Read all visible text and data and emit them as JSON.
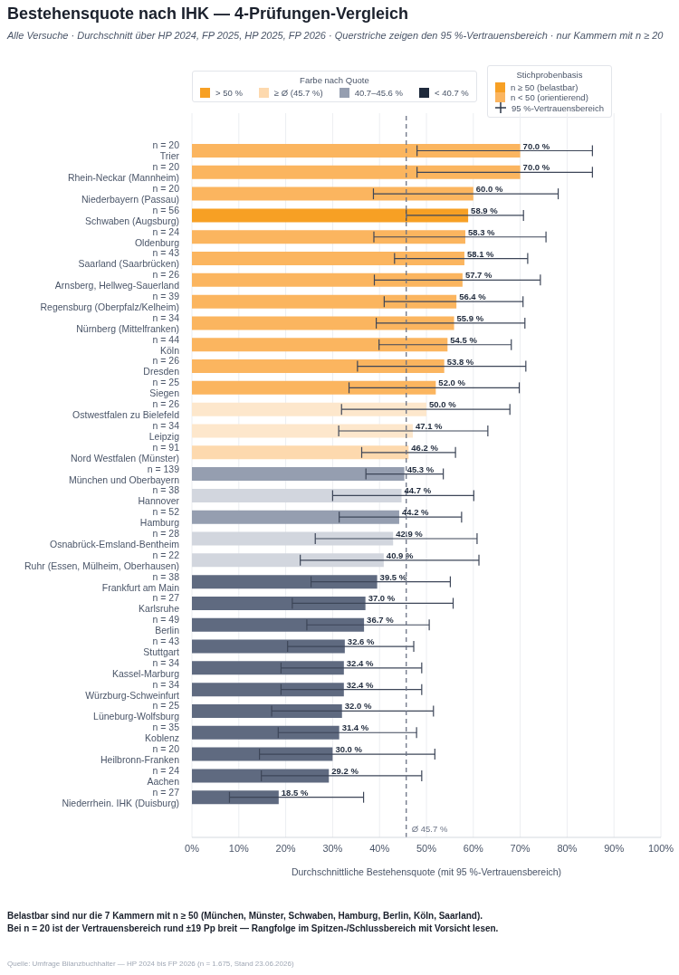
{
  "chart_data": {
    "type": "bar",
    "orientation": "horizontal",
    "title": "Bestehensquote nach IHK — 4-Prüfungen-Vergleich",
    "subtitle": "Alle Versuche · Durchschnitt über HP 2024, FP 2025, HP 2025, FP 2026 · Querstriche zeigen den 95 %-Vertrauensbereich · nur Kammern mit n ≥ 20",
    "xlabel": "Durchschnittliche Bestehensquote (mit 95 %-Vertrauensbereich)",
    "legend_title": "Farbe nach Quote",
    "categories": [
      "n = 20\nTrier",
      "n = 20\nRhein-Neckar (Mannheim)",
      "n = 20\nNiederbayern (Passau)",
      "n = 56\nSchwaben (Augsburg)",
      "n = 24\nOldenburg",
      "n = 43\nSaarland (Saarbrücken)",
      "n = 26\nArnsberg, Hellweg-Sauerland",
      "n = 39\nRegensburg (Oberpfalz/Kelheim)",
      "n = 34\nNürnberg (Mittelfranken)",
      "n = 44\nKöln",
      "n = 26\nDresden",
      "n = 25\nSiegen",
      "n = 26\nOstwestfalen zu Bielefeld",
      "n = 34\nLeipzig",
      "n = 91\nNord Westfalen (Münster)",
      "n = 139\nMünchen und Oberbayern",
      "n = 38\nHannover",
      "n = 52\nHamburg",
      "n = 28\nOsnabrück-Emsland-Bentheim",
      "n = 22\nRuhr (Essen, Mülheim, Oberhausen)",
      "n = 38\nFrankfurt am Main",
      "n = 27\nKarlsruhe",
      "n = 49\nBerlin",
      "n = 43\nStuttgart",
      "n = 34\nKassel-Marburg",
      "n = 34\nWürzburg-Schweinfurt",
      "n = 25\nLüneburg-Wolfsburg",
      "n = 35\nKoblenz",
      "n = 20\nHeilbronn-Franken",
      "n = 24\nAachen",
      "n = 27\nNiederrhein. IHK (Duisburg)"
    ],
    "series": [
      {
        "values": [
          70.0,
          70.0,
          60.0,
          58.9,
          58.3,
          58.1,
          57.7,
          56.4,
          55.9,
          54.5,
          53.8,
          52.0,
          50.0,
          47.1,
          46.2,
          45.3,
          44.7,
          44.2,
          42.9,
          40.9,
          39.5,
          37.0,
          36.7,
          32.6,
          32.4,
          32.4,
          32.0,
          31.4,
          30.0,
          29.2,
          18.5
        ],
        "colors": [
          "#fbb55f",
          "#fbb55f",
          "#fbb55f",
          "#f7a024",
          "#fbb55f",
          "#fbb55f",
          "#fbb55f",
          "#fbb55f",
          "#fbb55f",
          "#fbb55f",
          "#fbb55f",
          "#fbb55f",
          "#fde7cc",
          "#fde7cc",
          "#fdd9ae",
          "#959eb0",
          "#d2d6de",
          "#959eb0",
          "#d2d6de",
          "#d2d6de",
          "#5f6a80",
          "#5f6a80",
          "#5f6a80",
          "#5f6a80",
          "#5f6a80",
          "#5f6a80",
          "#5f6a80",
          "#5f6a80",
          "#5f6a80",
          "#5f6a80",
          "#5f6a80"
        ],
        "errors": [
          [
            48.0,
            85.4
          ],
          [
            48.0,
            85.4
          ],
          [
            38.7,
            78.1
          ],
          [
            45.7,
            70.7
          ],
          [
            38.8,
            75.5
          ],
          [
            43.2,
            71.6
          ],
          [
            38.9,
            74.3
          ],
          [
            41.0,
            70.6
          ],
          [
            39.3,
            71.0
          ],
          [
            39.9,
            68.1
          ],
          [
            35.3,
            71.2
          ],
          [
            33.5,
            69.8
          ],
          [
            31.9,
            67.8
          ],
          [
            31.3,
            63.1
          ],
          [
            36.2,
            56.2
          ],
          [
            37.1,
            53.6
          ],
          [
            30.0,
            60.1
          ],
          [
            31.4,
            57.5
          ],
          [
            26.3,
            60.8
          ],
          [
            23.1,
            61.2
          ],
          [
            25.4,
            55.1
          ],
          [
            21.4,
            55.7
          ],
          [
            24.5,
            50.6
          ],
          [
            20.4,
            47.3
          ],
          [
            19.0,
            49.0
          ],
          [
            19.0,
            49.0
          ],
          [
            17.0,
            51.5
          ],
          [
            18.4,
            47.9
          ],
          [
            14.4,
            51.8
          ],
          [
            14.8,
            49.0
          ],
          [
            8.0,
            36.6
          ]
        ],
        "value_labels": [
          "70.0 %",
          "70.0 %",
          "60.0 %",
          "58.9 %",
          "58.3 %",
          "58.1 %",
          "57.7 %",
          "56.4 %",
          "55.9 %",
          "54.5 %",
          "53.8 %",
          "52.0 %",
          "50.0 %",
          "47.1 %",
          "46.2 %",
          "45.3 %",
          "44.7 %",
          "44.2 %",
          "42.9 %",
          "40.9 %",
          "39.5 %",
          "37.0 %",
          "36.7 %",
          "32.6 %",
          "32.4 %",
          "32.4 %",
          "32.0 %",
          "31.4 %",
          "30.0 %",
          "29.2 %",
          "18.5 %"
        ]
      },
      {
        "name": "> 50 %",
        "color": "#f7a024",
        "values": [
          null,
          null,
          null,
          null,
          null,
          null,
          null,
          null,
          null,
          null,
          null,
          null,
          null,
          null,
          null,
          null,
          null,
          null,
          null,
          null,
          null,
          null,
          null,
          null,
          null,
          null,
          null,
          null,
          null,
          null,
          null
        ]
      },
      {
        "name": "≥ Ø (45.7 %)",
        "color": "#fdd9ae",
        "values": [
          null,
          null,
          null,
          null,
          null,
          null,
          null,
          null,
          null,
          null,
          null,
          null,
          null,
          null,
          null,
          null,
          null,
          null,
          null,
          null,
          null,
          null,
          null,
          null,
          null,
          null,
          null,
          null,
          null,
          null,
          null
        ]
      },
      {
        "name": "40.7–45.6 %",
        "color": "#959eb0",
        "values": [
          null,
          null,
          null,
          null,
          null,
          null,
          null,
          null,
          null,
          null,
          null,
          null,
          null,
          null,
          null,
          null,
          null,
          null,
          null,
          null,
          null,
          null,
          null,
          null,
          null,
          null,
          null,
          null,
          null,
          null,
          null
        ]
      },
      {
        "name": "< 40.7 %",
        "color": "#1f2a3c",
        "values": [
          null,
          null,
          null,
          null,
          null,
          null,
          null,
          null,
          null,
          null,
          null,
          null,
          null,
          null,
          null,
          null,
          null,
          null,
          null,
          null,
          null,
          null,
          null,
          null,
          null,
          null,
          null,
          null,
          null,
          null,
          null
        ]
      },
      {
        "name": "n ≥ 50 (belastbar)",
        "color": "#f7a024",
        "values": [
          null,
          null,
          null,
          null,
          null,
          null,
          null,
          null,
          null,
          null,
          null,
          null,
          null,
          null,
          null,
          null,
          null,
          null,
          null,
          null,
          null,
          null,
          null,
          null,
          null,
          null,
          null,
          null,
          null,
          null,
          null
        ]
      },
      {
        "name": "n < 50 (orientierend)",
        "color": "#fbb55f",
        "values": [
          null,
          null,
          null,
          null,
          null,
          null,
          null,
          null,
          null,
          null,
          null,
          null,
          null,
          null,
          null,
          null,
          null,
          null,
          null,
          null,
          null,
          null,
          null,
          null,
          null,
          null,
          null,
          null,
          null,
          null,
          null
        ]
      },
      {
        "name": "95 %-Vertrauensbereich",
        "color": "#2d3748",
        "values": [
          null,
          null,
          null,
          null,
          null,
          null,
          null,
          null,
          null,
          null,
          null,
          null,
          null,
          null,
          null,
          null,
          null,
          null,
          null,
          null,
          null,
          null,
          null,
          null,
          null,
          null,
          null,
          null,
          null,
          null,
          null
        ]
      }
    ],
    "xlim": [
      0,
      100
    ],
    "xticks": [
      {
        "value": 0,
        "label": "0%"
      },
      {
        "value": 10,
        "label": "10%"
      },
      {
        "value": 20,
        "label": "20%"
      },
      {
        "value": 30,
        "label": "30%"
      },
      {
        "value": 40,
        "label": "40%"
      },
      {
        "value": 50,
        "label": "50%"
      },
      {
        "value": 60,
        "label": "60%"
      },
      {
        "value": 70,
        "label": "70%"
      },
      {
        "value": 80,
        "label": "80%"
      },
      {
        "value": 90,
        "label": "90%"
      },
      {
        "value": 100,
        "label": "100%"
      }
    ],
    "ref_lines": [
      {
        "axis": "x",
        "value": 45.7,
        "label": "Ø 45.7 %",
        "color": "#6b7385",
        "line_style": "dashed"
      }
    ],
    "grid": "x",
    "legend": "top",
    "annotations": [
      "Stichprobenbasis",
      "Belastbar sind nur die 7 Kammern mit n ≥ 50 (München, Münster, Schwaben, Hamburg, Berlin, Köln, Saarland).",
      "Bei n = 20 ist der Vertrauensbereich rund ±19 Pp breit — Rangfolge im Spitzen-/Schlussbereich mit Vorsicht lesen.",
      "Quelle: Umfrage Bilanzbuchhalter — HP 2024 bis FP 2026 (n = 1.675, Stand 23.06.2026)"
    ]
  }
}
